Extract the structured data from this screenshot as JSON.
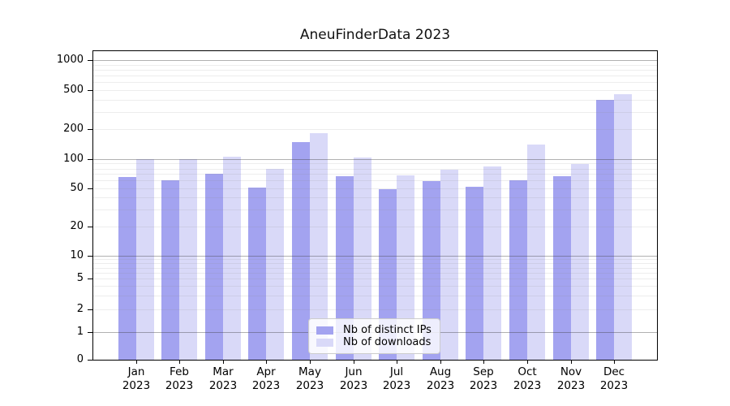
{
  "title": "AneuFinderData 2023",
  "chart_data": {
    "type": "bar",
    "title": "AneuFinderData 2023",
    "x_tick_labels": [
      {
        "line1": "Jan",
        "line2": "2023"
      },
      {
        "line1": "Feb",
        "line2": "2023"
      },
      {
        "line1": "Mar",
        "line2": "2023"
      },
      {
        "line1": "Apr",
        "line2": "2023"
      },
      {
        "line1": "May",
        "line2": "2023"
      },
      {
        "line1": "Jun",
        "line2": "2023"
      },
      {
        "line1": "Jul",
        "line2": "2023"
      },
      {
        "line1": "Aug",
        "line2": "2023"
      },
      {
        "line1": "Sep",
        "line2": "2023"
      },
      {
        "line1": "Oct",
        "line2": "2023"
      },
      {
        "line1": "Nov",
        "line2": "2023"
      },
      {
        "line1": "Dec",
        "line2": "2023"
      }
    ],
    "series": [
      {
        "name": "Nb of distinct IPs",
        "color": "#a3a3f0",
        "values": [
          65,
          60,
          70,
          51,
          149,
          67,
          49,
          59,
          52,
          60,
          66,
          397
        ]
      },
      {
        "name": "Nb of downloads",
        "color": "#d9d9f8",
        "values": [
          100,
          100,
          105,
          79,
          184,
          103,
          68,
          78,
          84,
          140,
          89,
          452
        ]
      }
    ],
    "yscale": "symlog (linear 0-1, log above)",
    "yticks": [
      0,
      1,
      2,
      5,
      10,
      20,
      50,
      100,
      200,
      500,
      1000
    ],
    "ytick_major_gridlines": [
      1,
      10,
      100,
      1000
    ],
    "ylim": [
      0,
      1250
    ],
    "grid": "horizontal major + log minor gridlines drawn over bars",
    "legend_position": "lower center inside plot",
    "xlabel": "",
    "ylabel": ""
  }
}
